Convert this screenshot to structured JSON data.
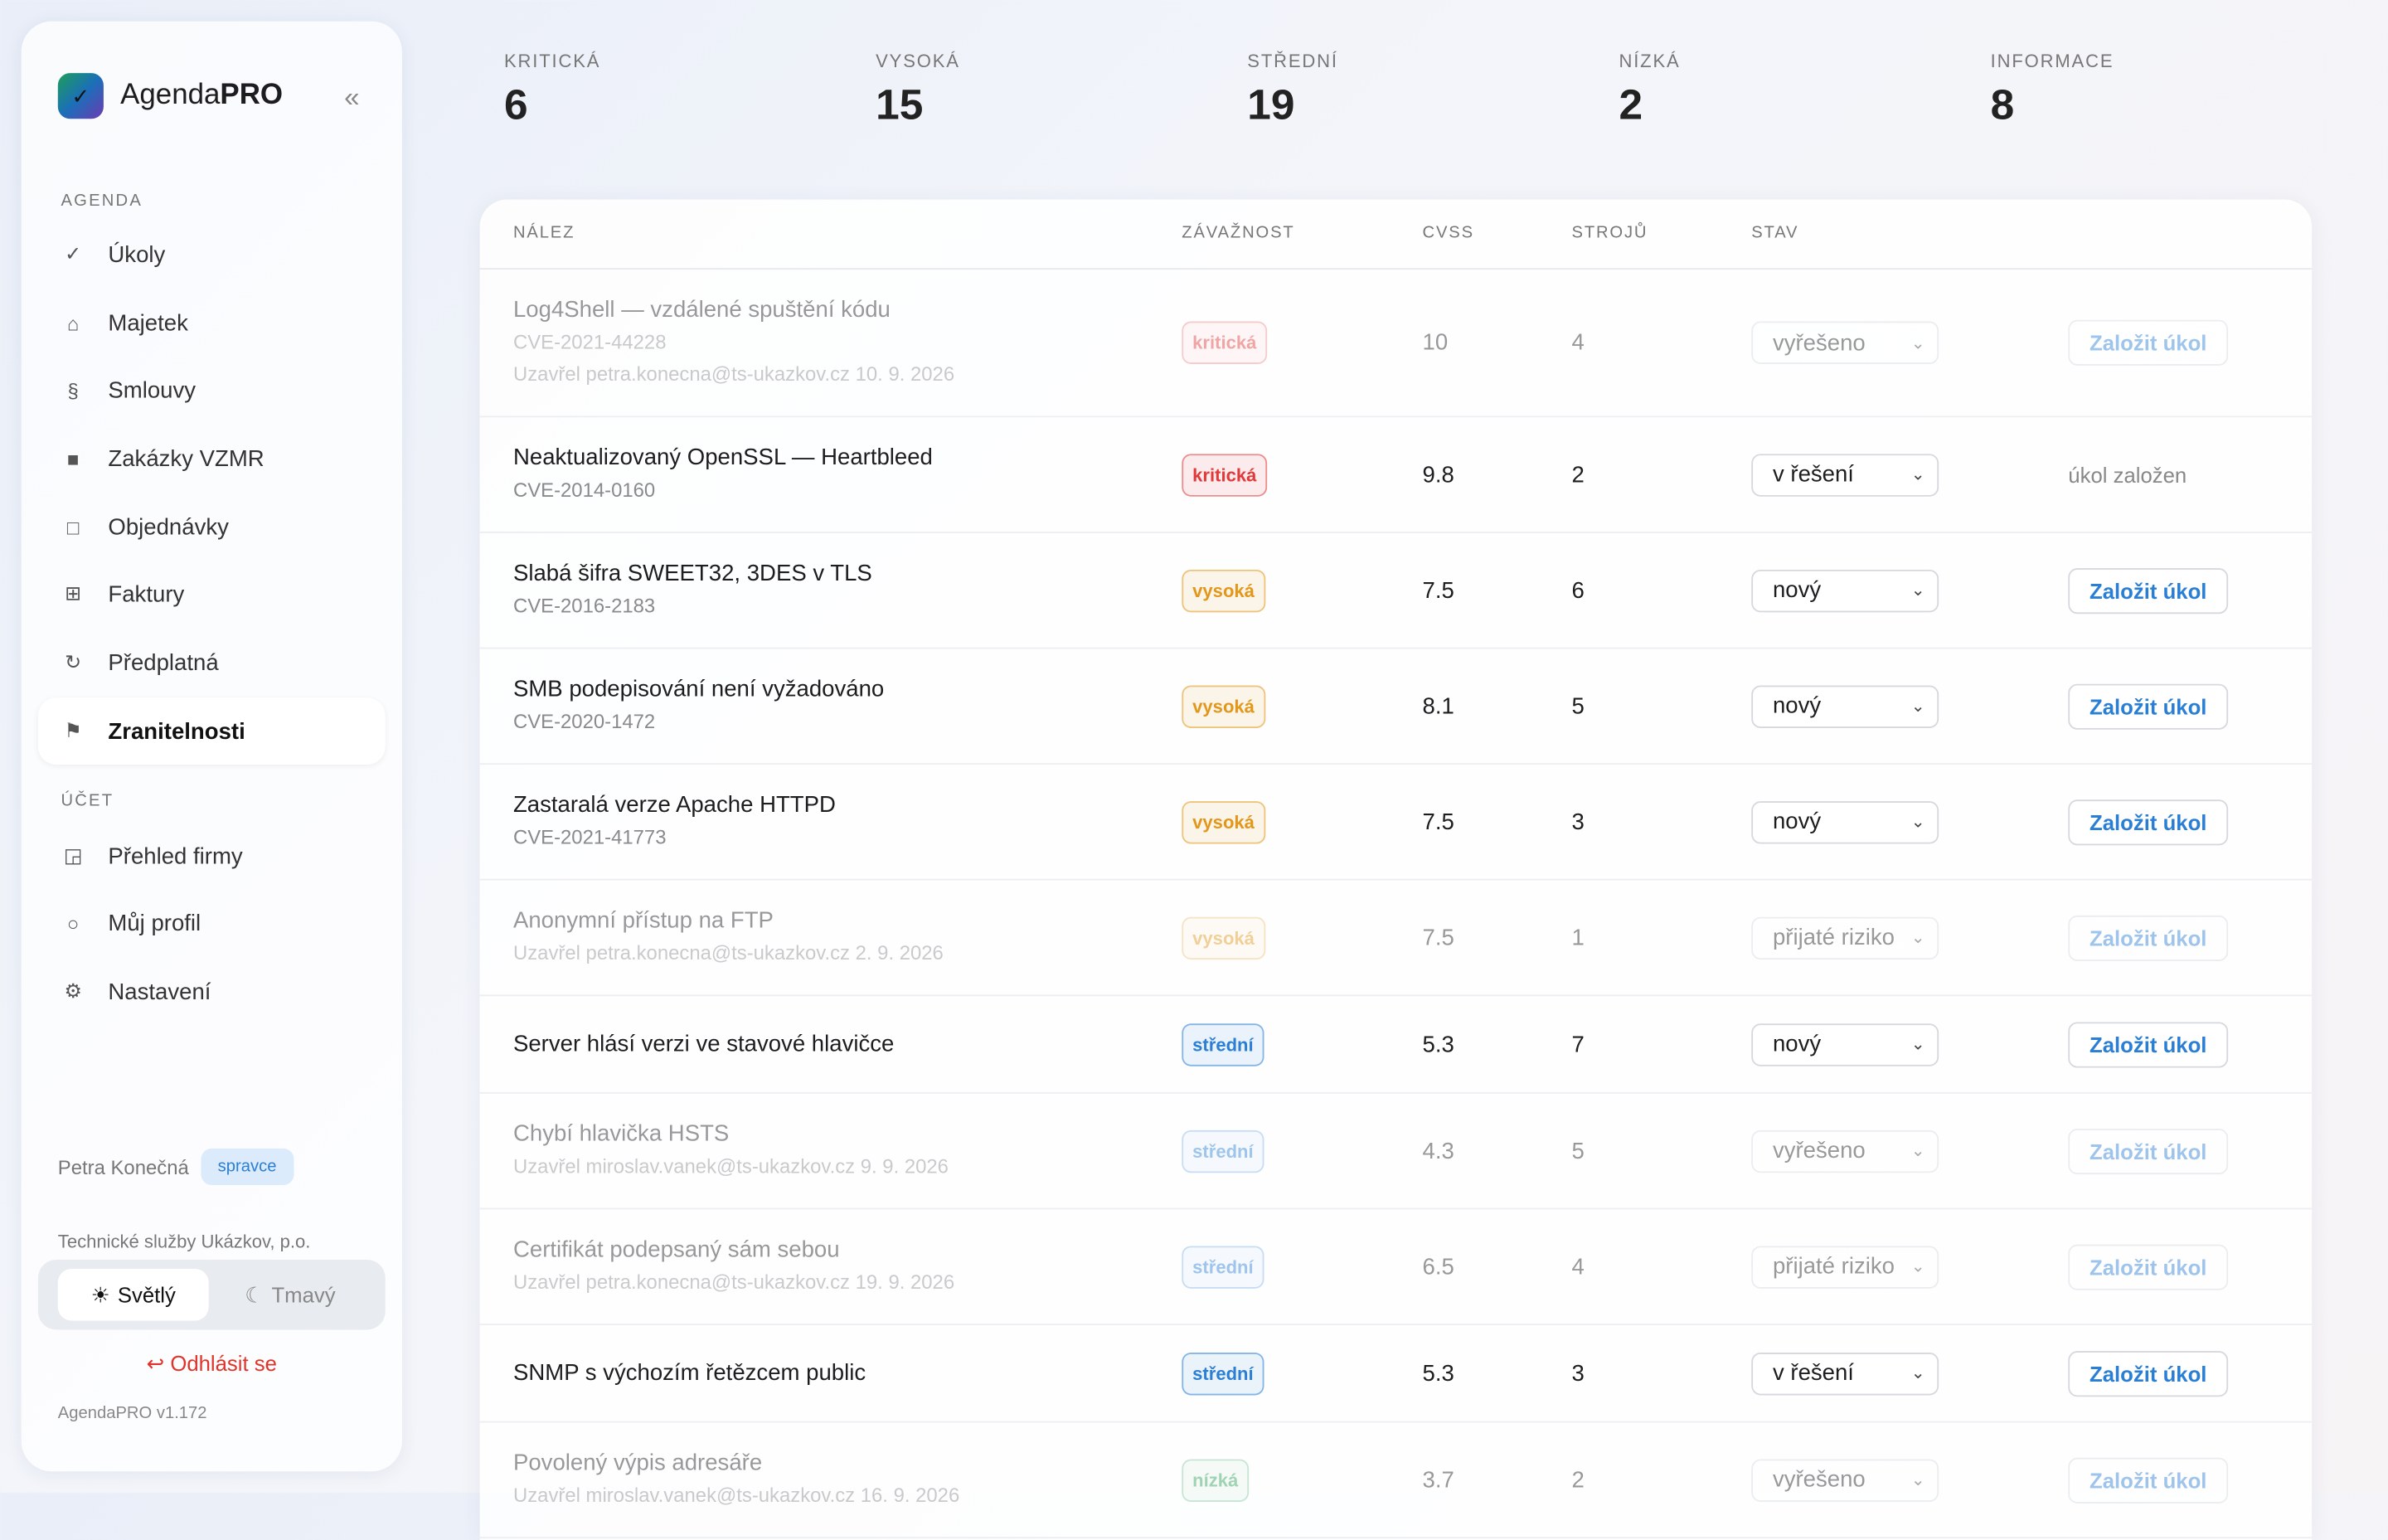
{
  "sidebar": {
    "brand": "Agenda",
    "brand_bold": "PRO",
    "section_agenda": "AGENDA",
    "agenda_items": [
      "Úkoly",
      "Majetek",
      "Smlouvy",
      "Zakázky VZMR",
      "Objednávky",
      "Faktury",
      "Předplatná",
      "Zranitelnosti"
    ],
    "section_account": "ÚČET",
    "account_items": [
      "Přehled firmy",
      "Můj profil",
      "Nastavení"
    ],
    "user": "Petra Konečná",
    "role": "spravce",
    "org": "Technické služby Ukázkov, p.o.",
    "theme_light": "Světlý",
    "theme_dark": "Tmavý",
    "logout": "Odhlásit se",
    "version": "AgendaPRO v1.172"
  },
  "stats": [
    {
      "label": "KRITICKÁ",
      "value": 6
    },
    {
      "label": "VYSOKÁ",
      "value": 15
    },
    {
      "label": "STŘEDNÍ",
      "value": 19
    },
    {
      "label": "NÍZKÁ",
      "value": 2
    },
    {
      "label": "INFORMACE",
      "value": 8
    }
  ],
  "table": {
    "columns": [
      "NÁLEZ",
      "ZÁVAŽNOST",
      "CVSS",
      "STROJŮ",
      "STAV"
    ],
    "rows": [
      {
        "name": "Log4Shell — vzdálené spuštění kódu",
        "id": "CVE-2021-44228",
        "note": "Uzavřel petra.konecna@ts-ukazkov.cz 10. 9. 2026",
        "severity": "kritická",
        "color": "#e03a3a",
        "cvss": 10,
        "machines": 4,
        "status": "vyřešeno",
        "action": "Založit úkol"
      },
      {
        "name": "Neaktualizovaný OpenSSL — Heartbleed",
        "id": "CVE-2014-0160",
        "severity": "kritická",
        "color": "#e03a3a",
        "cvss": 9.8,
        "machines": 2,
        "status": "v řešení",
        "task": "úkol založen"
      },
      {
        "name": "Slabá šifra SWEET32, 3DES v TLS",
        "id": "CVE-2016-2183",
        "severity": "vysoká",
        "color": "#e3971a",
        "cvss": 7.5,
        "machines": 6,
        "status": "nový",
        "action": "Založit úkol"
      },
      {
        "name": "SMB podepisování není vyžadováno",
        "id": "CVE-2020-1472",
        "severity": "vysoká",
        "color": "#e3971a",
        "cvss": 8.1,
        "machines": 5,
        "status": "nový",
        "action": "Založit úkol"
      },
      {
        "name": "Zastaralá verze Apache HTTPD",
        "id": "CVE-2021-41773",
        "severity": "vysoká",
        "color": "#e3971a",
        "cvss": 7.5,
        "machines": 3,
        "status": "nový",
        "action": "Založit úkol"
      },
      {
        "name": "Anonymní přístup na FTP",
        "note": "Uzavřel petra.konecna@ts-ukazkov.cz 2. 9. 2026",
        "severity": "vysoká",
        "color": "#e3971a",
        "cvss": 7.5,
        "machines": 1,
        "status": "přijaté riziko",
        "action": "Založit úkol"
      },
      {
        "name": "Server hlásí verzi ve stavové hlavičce",
        "severity": "střední",
        "color": "#2a7fd4",
        "cvss": 5.3,
        "machines": 7,
        "status": "nový",
        "action": "Založit úkol"
      },
      {
        "name": "Chybí hlavička HSTS",
        "note": "Uzavřel miroslav.vanek@ts-ukazkov.cz 9. 9. 2026",
        "severity": "střední",
        "color": "#2a7fd4",
        "cvss": 4.3,
        "machines": 5,
        "status": "vyřešeno",
        "action": "Založit úkol"
      },
      {
        "name": "Certifikát podepsaný sám sebou",
        "note": "Uzavřel petra.konecna@ts-ukazkov.cz 19. 9. 2026",
        "severity": "střední",
        "color": "#2a7fd4",
        "cvss": 6.5,
        "machines": 4,
        "status": "přijaté riziko",
        "action": "Založit úkol"
      },
      {
        "name": "SNMP s výchozím řetězcem public",
        "severity": "střední",
        "color": "#2a7fd4",
        "cvss": 5.3,
        "machines": 3,
        "status": "v řešení",
        "action": "Založit úkol"
      },
      {
        "name": "Povolený výpis adresáře",
        "note": "Uzavřel miroslav.vanek@ts-ukazkov.cz 16. 9. 2026",
        "severity": "nízká",
        "color": "#2f9e5a",
        "cvss": 3.7,
        "machines": 2,
        "status": "vyřešeno",
        "action": "Založit úkol"
      }
    ]
  }
}
